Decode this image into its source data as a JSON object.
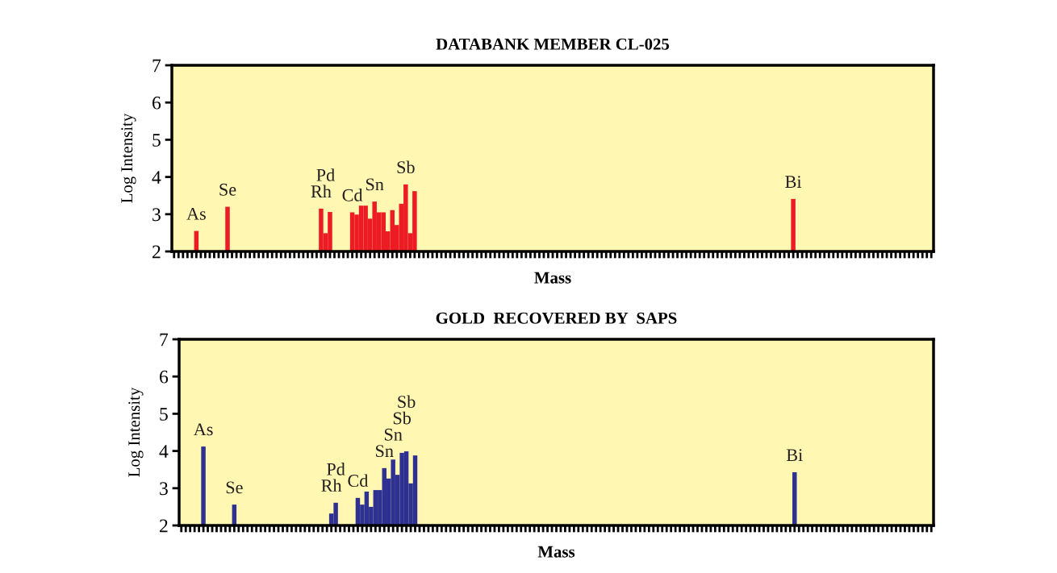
{
  "chart_data": [
    {
      "type": "bar",
      "title": "DATABANK MEMBER CL-025",
      "xlabel": "Mass",
      "ylabel": "Log Intensity",
      "color": "#ed1c24",
      "ylim": [
        2,
        7
      ],
      "yticks": [
        2,
        3,
        4,
        5,
        6,
        7
      ],
      "grid": false,
      "tick_labels": "y",
      "categories": [
        null,
        null,
        null,
        null,
        null,
        null,
        null,
        null,
        null,
        null,
        null,
        null,
        null,
        null,
        null,
        null,
        null,
        null,
        null,
        null,
        null,
        null,
        null,
        null,
        null,
        null,
        null,
        null,
        null,
        null,
        null,
        null,
        null,
        null,
        null,
        null,
        null,
        null,
        null,
        null,
        null,
        null,
        null,
        null,
        null,
        null,
        null,
        null,
        null,
        null,
        null,
        null,
        null,
        null,
        null,
        null,
        null,
        null,
        null,
        null,
        null,
        null,
        null,
        null,
        null,
        null,
        null,
        null,
        null,
        null,
        null,
        null,
        null,
        null,
        null,
        null,
        null,
        null,
        null,
        null,
        null,
        null,
        null,
        null,
        null,
        null,
        null,
        null,
        null,
        null,
        null,
        null,
        null,
        null,
        null,
        null,
        null,
        null,
        null,
        null,
        null,
        null,
        null,
        null,
        null,
        null,
        null,
        null,
        null,
        null,
        null,
        null,
        null,
        null,
        null,
        null,
        null,
        null,
        null,
        null,
        null,
        null,
        null,
        null,
        null,
        null,
        null,
        null,
        null,
        null,
        null,
        null,
        null,
        null,
        null,
        null,
        null,
        null,
        null,
        null,
        null,
        null,
        null,
        null,
        null,
        null,
        null,
        null,
        null,
        null,
        null,
        null,
        null,
        null,
        null,
        null,
        null,
        null,
        null,
        null,
        null,
        null,
        null,
        null,
        null,
        null,
        null,
        null,
        null,
        null,
        null
      ],
      "values": [
        null,
        null,
        null,
        null,
        null,
        2.55,
        null,
        null,
        null,
        null,
        null,
        null,
        3.2,
        null,
        null,
        null,
        null,
        null,
        null,
        null,
        null,
        null,
        null,
        null,
        null,
        null,
        null,
        null,
        null,
        null,
        null,
        null,
        null,
        3.15,
        2.49,
        3.06,
        null,
        null,
        null,
        null,
        3.05,
        2.99,
        3.23,
        3.23,
        2.88,
        3.34,
        3.05,
        3.05,
        2.54,
        3.11,
        2.71,
        3.28,
        3.8,
        2.49,
        3.62,
        null,
        null,
        null,
        null,
        null,
        null,
        null,
        null,
        null,
        null,
        null,
        null,
        null,
        null,
        null,
        null,
        null,
        null,
        null,
        null,
        null,
        null,
        null,
        null,
        null,
        null,
        null,
        null,
        null,
        null,
        null,
        null,
        null,
        null,
        null,
        null,
        null,
        null,
        null,
        null,
        null,
        null,
        null,
        null,
        null,
        null,
        null,
        null,
        null,
        null,
        null,
        null,
        null,
        null,
        null,
        null,
        null,
        null,
        null,
        null,
        null,
        null,
        null,
        null,
        null,
        null,
        null,
        null,
        null,
        null,
        null,
        null,
        null,
        null,
        null,
        null,
        null,
        null,
        null,
        null,
        null,
        null,
        null,
        null,
        3.41,
        null,
        null,
        null,
        null,
        null,
        null,
        null,
        null,
        null,
        null,
        null,
        null,
        null,
        null,
        null,
        null,
        null,
        null,
        null,
        null,
        null,
        null,
        null,
        null,
        null,
        null,
        null,
        null,
        null,
        null,
        null
      ],
      "value_labels": [
        null,
        null,
        null,
        null,
        null,
        "As",
        null,
        null,
        null,
        null,
        null,
        null,
        "Se",
        null,
        null,
        null,
        null,
        null,
        null,
        null,
        null,
        null,
        null,
        null,
        null,
        null,
        null,
        null,
        null,
        null,
        null,
        null,
        null,
        "Rh",
        "Pd",
        null,
        null,
        null,
        null,
        null,
        "Cd",
        null,
        null,
        null,
        null,
        "Sn",
        null,
        null,
        null,
        null,
        null,
        null,
        "Sb",
        null,
        null,
        null,
        null,
        null,
        null,
        null,
        null,
        null,
        null,
        null,
        null,
        null,
        null,
        null,
        null,
        null,
        null,
        null,
        null,
        null,
        null,
        null,
        null,
        null,
        null,
        null,
        null,
        null,
        null,
        null,
        null,
        null,
        null,
        null,
        null,
        null,
        null,
        null,
        null,
        null,
        null,
        null,
        null,
        null,
        null,
        null,
        null,
        null,
        null,
        null,
        null,
        null,
        null,
        null,
        null,
        null,
        null,
        null,
        null,
        null,
        null,
        null,
        null,
        null,
        null,
        null,
        null,
        null,
        null,
        null,
        null,
        null,
        null,
        null,
        null,
        null,
        null,
        null,
        null,
        null,
        null,
        null,
        null,
        null,
        null,
        "Bi",
        null,
        null,
        null,
        null,
        null,
        null,
        null,
        null,
        null,
        null,
        null,
        null,
        null,
        null,
        null,
        null,
        null,
        null,
        null,
        null,
        null,
        null,
        null,
        null,
        null,
        null,
        null,
        null,
        null,
        null,
        null
      ]
    },
    {
      "type": "bar",
      "title": "GOLD  RECOVERED BY  SAPS",
      "xlabel": "Mass",
      "ylabel": "Log Intensity",
      "color": "#2e3192",
      "ylim": [
        2,
        7
      ],
      "yticks": [
        2,
        3,
        4,
        5,
        6,
        7
      ],
      "grid": false,
      "tick_labels": "y",
      "categories": [
        null,
        null,
        null,
        null,
        null,
        null,
        null,
        null,
        null,
        null,
        null,
        null,
        null,
        null,
        null,
        null,
        null,
        null,
        null,
        null,
        null,
        null,
        null,
        null,
        null,
        null,
        null,
        null,
        null,
        null,
        null,
        null,
        null,
        null,
        null,
        null,
        null,
        null,
        null,
        null,
        null,
        null,
        null,
        null,
        null,
        null,
        null,
        null,
        null,
        null,
        null,
        null,
        null,
        null,
        null,
        null,
        null,
        null,
        null,
        null,
        null,
        null,
        null,
        null,
        null,
        null,
        null,
        null,
        null,
        null,
        null,
        null,
        null,
        null,
        null,
        null,
        null,
        null,
        null,
        null,
        null,
        null,
        null,
        null,
        null,
        null,
        null,
        null,
        null,
        null,
        null,
        null,
        null,
        null,
        null,
        null,
        null,
        null,
        null,
        null,
        null,
        null,
        null,
        null,
        null,
        null,
        null,
        null,
        null,
        null,
        null,
        null,
        null,
        null,
        null,
        null,
        null,
        null,
        null,
        null,
        null,
        null,
        null,
        null,
        null,
        null,
        null,
        null,
        null,
        null,
        null,
        null,
        null,
        null,
        null,
        null,
        null,
        null,
        null,
        null,
        null,
        null,
        null,
        null,
        null,
        null,
        null,
        null,
        null,
        null,
        null,
        null,
        null,
        null,
        null,
        null,
        null,
        null,
        null,
        null,
        null,
        null,
        null,
        null,
        null,
        null,
        null,
        null,
        null,
        null,
        null
      ],
      "values": [
        null,
        null,
        null,
        null,
        null,
        4.12,
        null,
        null,
        null,
        null,
        null,
        null,
        2.56,
        null,
        null,
        null,
        null,
        null,
        null,
        null,
        null,
        null,
        null,
        null,
        null,
        null,
        null,
        null,
        null,
        null,
        null,
        null,
        null,
        null,
        2.32,
        2.61,
        null,
        null,
        null,
        null,
        2.74,
        2.56,
        2.91,
        2.5,
        2.95,
        2.95,
        3.54,
        3.26,
        3.77,
        3.36,
        3.95,
        3.99,
        3.13,
        3.88,
        null,
        null,
        null,
        null,
        null,
        null,
        null,
        null,
        null,
        null,
        null,
        null,
        null,
        null,
        null,
        null,
        null,
        null,
        null,
        null,
        null,
        null,
        null,
        null,
        null,
        null,
        null,
        null,
        null,
        null,
        null,
        null,
        null,
        null,
        null,
        null,
        null,
        null,
        null,
        null,
        null,
        null,
        null,
        null,
        null,
        null,
        null,
        null,
        null,
        null,
        null,
        null,
        null,
        null,
        null,
        null,
        null,
        null,
        null,
        null,
        null,
        null,
        null,
        null,
        null,
        null,
        null,
        null,
        null,
        null,
        null,
        null,
        null,
        null,
        null,
        null,
        null,
        null,
        null,
        null,
        null,
        null,
        null,
        null,
        null,
        3.43,
        null,
        null,
        null,
        null,
        null,
        null,
        null,
        null,
        null,
        null,
        null,
        null,
        null,
        null,
        null,
        null,
        null,
        null,
        null,
        null,
        null,
        null,
        null,
        null,
        null,
        null,
        null,
        null,
        null,
        null,
        null
      ],
      "value_labels": [
        null,
        null,
        null,
        null,
        null,
        "As",
        null,
        null,
        null,
        null,
        null,
        null,
        "Se",
        null,
        null,
        null,
        null,
        null,
        null,
        null,
        null,
        null,
        null,
        null,
        null,
        null,
        null,
        null,
        null,
        null,
        null,
        null,
        null,
        null,
        "Rh",
        "Pd",
        null,
        null,
        null,
        null,
        "Cd",
        null,
        null,
        null,
        null,
        null,
        "Sn",
        null,
        "Sn",
        null,
        "Sb",
        "Sb",
        null,
        null,
        null,
        null,
        null,
        null,
        null,
        null,
        null,
        null,
        null,
        null,
        null,
        null,
        null,
        null,
        null,
        null,
        null,
        null,
        null,
        null,
        null,
        null,
        null,
        null,
        null,
        null,
        null,
        null,
        null,
        null,
        null,
        null,
        null,
        null,
        null,
        null,
        null,
        null,
        null,
        null,
        null,
        null,
        null,
        null,
        null,
        null,
        null,
        null,
        null,
        null,
        null,
        null,
        null,
        null,
        null,
        null,
        null,
        null,
        null,
        null,
        null,
        null,
        null,
        null,
        null,
        null,
        null,
        null,
        null,
        null,
        null,
        null,
        null,
        null,
        null,
        null,
        null,
        null,
        null,
        null,
        null,
        null,
        null,
        null,
        null,
        "Bi",
        null,
        null,
        null,
        null,
        null,
        null,
        null,
        null,
        null,
        null,
        null,
        null,
        null,
        null,
        null,
        null,
        null,
        null,
        null,
        null,
        null,
        null,
        null,
        null,
        null,
        null,
        null,
        null,
        null,
        null,
        null
      ]
    }
  ]
}
